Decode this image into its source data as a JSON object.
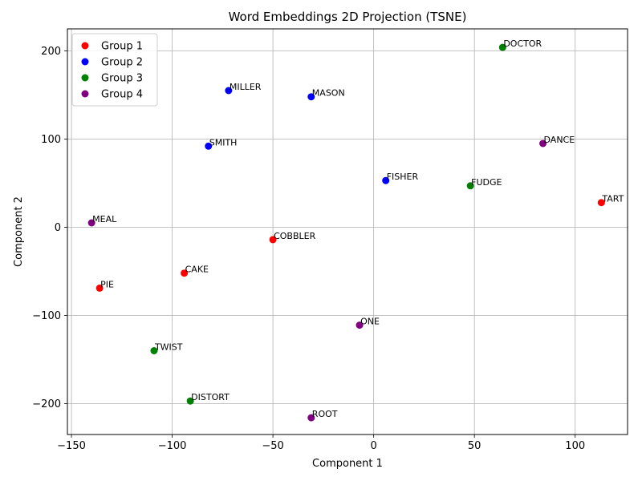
{
  "chart_data": {
    "type": "scatter",
    "title": "Word Embeddings 2D Projection (TSNE)",
    "xlabel": "Component 1",
    "ylabel": "Component 2",
    "xlim": [
      -152,
      126
    ],
    "ylim": [
      -235,
      225
    ],
    "xticks": [
      -150,
      -100,
      -50,
      0,
      50,
      100
    ],
    "yticks": [
      -200,
      -100,
      0,
      100,
      200
    ],
    "xtick_labels": [
      "−150",
      "−100",
      "−50",
      "0",
      "50",
      "100"
    ],
    "ytick_labels": [
      "−200",
      "−100",
      "0",
      "100",
      "200"
    ],
    "grid": true,
    "legend_position": "top-left",
    "series": [
      {
        "name": "Group 1",
        "color": "#ff0000",
        "points": [
          {
            "label": "PIE",
            "x": -136,
            "y": -69
          },
          {
            "label": "CAKE",
            "x": -94,
            "y": -52
          },
          {
            "label": "COBBLER",
            "x": -50,
            "y": -14
          },
          {
            "label": "TART",
            "x": 113,
            "y": 28
          }
        ]
      },
      {
        "name": "Group 2",
        "color": "#0000ff",
        "points": [
          {
            "label": "MILLER",
            "x": -72,
            "y": 155
          },
          {
            "label": "MASON",
            "x": -31,
            "y": 148
          },
          {
            "label": "SMITH",
            "x": -82,
            "y": 92
          },
          {
            "label": "FISHER",
            "x": 6,
            "y": 53
          }
        ]
      },
      {
        "name": "Group 3",
        "color": "#008000",
        "points": [
          {
            "label": "DOCTOR",
            "x": 64,
            "y": 204
          },
          {
            "label": "FUDGE",
            "x": 48,
            "y": 47
          },
          {
            "label": "TWIST",
            "x": -109,
            "y": -140
          },
          {
            "label": "DISTORT",
            "x": -91,
            "y": -197
          }
        ]
      },
      {
        "name": "Group 4",
        "color": "#800080",
        "points": [
          {
            "label": "DANCE",
            "x": 84,
            "y": 95
          },
          {
            "label": "MEAL",
            "x": -140,
            "y": 5
          },
          {
            "label": "ONE",
            "x": -7,
            "y": -111
          },
          {
            "label": "ROOT",
            "x": -31,
            "y": -216
          }
        ]
      }
    ]
  }
}
